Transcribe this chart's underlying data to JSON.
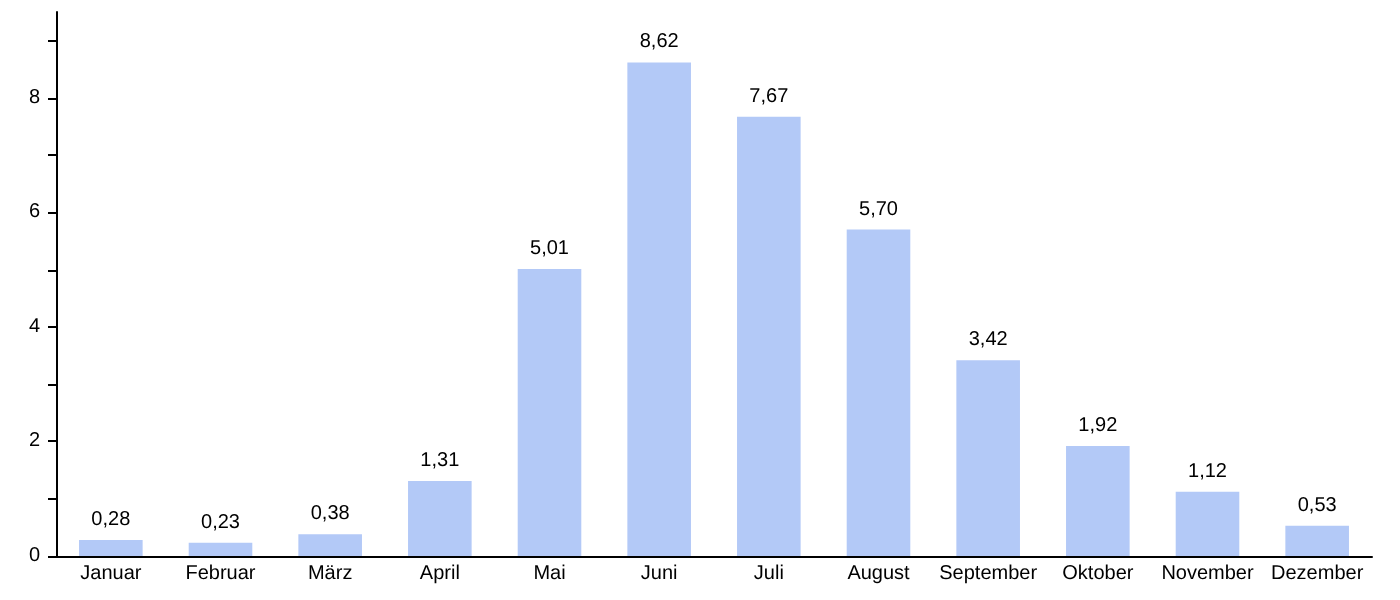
{
  "chart_data": {
    "type": "bar",
    "categories": [
      "Januar",
      "Februar",
      "März",
      "April",
      "Mai",
      "Juni",
      "Juli",
      "August",
      "September",
      "Oktober",
      "November",
      "Dezember"
    ],
    "values": [
      0.28,
      0.23,
      0.38,
      1.31,
      5.01,
      8.62,
      7.67,
      5.7,
      3.42,
      1.92,
      1.12,
      0.53
    ],
    "value_labels": [
      "0,28",
      "0,23",
      "0,38",
      "1,31",
      "5,01",
      "8,62",
      "7,67",
      "5,70",
      "3,42",
      "1,92",
      "1,12",
      "0,53"
    ],
    "color": "#b3c9f7",
    "ylim": [
      0,
      9.5
    ],
    "yticks": [
      0,
      {
        "value": 1,
        "label": null
      },
      2,
      {
        "value": 3,
        "label": null
      },
      4,
      {
        "value": 5,
        "label": null
      },
      6,
      {
        "value": 7,
        "label": null
      },
      8,
      {
        "value": 9,
        "label": null
      }
    ],
    "grid": false
  }
}
